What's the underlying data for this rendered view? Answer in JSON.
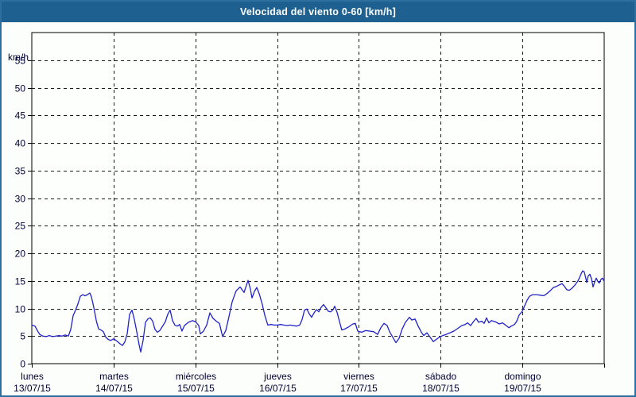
{
  "window": {
    "title": "Velocidad del viento 0-60 [km/h]"
  },
  "colors": {
    "title_bg": "#1e6090",
    "frame": "#2d6f9f",
    "page_bg": "#fbfefb",
    "plot_bg": "#fdfffd",
    "grid": "#1a1a1a",
    "axis": "#000000",
    "text": "#000033",
    "line": "#2121c8"
  },
  "chart_data": {
    "type": "line",
    "title": "Velocidad del viento 0-60 [km/h]",
    "y_unit_label": "km/h",
    "ylim": [
      0,
      60
    ],
    "ytick_step": 5,
    "ytick_label_max": 55,
    "grid": "dashed",
    "legend": "none",
    "x_days": [
      {
        "name": "lunes",
        "date": "13/07/15"
      },
      {
        "name": "martes",
        "date": "14/07/15"
      },
      {
        "name": "miércoles",
        "date": "15/07/15"
      },
      {
        "name": "jueves",
        "date": "16/07/15"
      },
      {
        "name": "viernes",
        "date": "17/07/15"
      },
      {
        "name": "sábado",
        "date": "18/07/15"
      },
      {
        "name": "domingo",
        "date": "19/07/15"
      }
    ],
    "series": [
      {
        "name": "velocidad del viento",
        "unit": "km/h",
        "points": [
          [
            0.0,
            7.0
          ],
          [
            0.039,
            6.8
          ],
          [
            0.068,
            6.0
          ],
          [
            0.097,
            5.3
          ],
          [
            0.136,
            5.0
          ],
          [
            0.175,
            4.9
          ],
          [
            0.214,
            5.1
          ],
          [
            0.253,
            4.9
          ],
          [
            0.292,
            5.0
          ],
          [
            0.331,
            5.1
          ],
          [
            0.369,
            5.0
          ],
          [
            0.408,
            5.2
          ],
          [
            0.447,
            5.0
          ],
          [
            0.476,
            6.2
          ],
          [
            0.506,
            8.7
          ],
          [
            0.535,
            9.7
          ],
          [
            0.564,
            10.8
          ],
          [
            0.593,
            12.2
          ],
          [
            0.622,
            12.5
          ],
          [
            0.651,
            12.3
          ],
          [
            0.681,
            12.5
          ],
          [
            0.71,
            12.8
          ],
          [
            0.729,
            12.1
          ],
          [
            0.758,
            10.2
          ],
          [
            0.788,
            7.8
          ],
          [
            0.817,
            6.3
          ],
          [
            0.846,
            6.1
          ],
          [
            0.875,
            5.8
          ],
          [
            0.904,
            4.8
          ],
          [
            0.933,
            4.4
          ],
          [
            0.963,
            4.2
          ],
          [
            1.002,
            4.5
          ],
          [
            1.04,
            4.1
          ],
          [
            1.079,
            3.6
          ],
          [
            1.108,
            3.3
          ],
          [
            1.137,
            3.9
          ],
          [
            1.167,
            5.4
          ],
          [
            1.196,
            8.9
          ],
          [
            1.225,
            9.7
          ],
          [
            1.254,
            8.0
          ],
          [
            1.283,
            5.8
          ],
          [
            1.312,
            3.5
          ],
          [
            1.332,
            2.1
          ],
          [
            1.361,
            4.2
          ],
          [
            1.39,
            7.5
          ],
          [
            1.419,
            8.1
          ],
          [
            1.449,
            8.3
          ],
          [
            1.478,
            7.7
          ],
          [
            1.507,
            6.2
          ],
          [
            1.536,
            5.7
          ],
          [
            1.565,
            6.0
          ],
          [
            1.604,
            6.9
          ],
          [
            1.633,
            7.6
          ],
          [
            1.662,
            8.9
          ],
          [
            1.692,
            9.7
          ],
          [
            1.721,
            7.8
          ],
          [
            1.75,
            7.0
          ],
          [
            1.779,
            6.8
          ],
          [
            1.808,
            7.1
          ],
          [
            1.837,
            5.9
          ],
          [
            1.867,
            6.9
          ],
          [
            1.915,
            7.5
          ],
          [
            1.964,
            7.8
          ],
          [
            2.003,
            7.6
          ],
          [
            2.042,
            6.9
          ],
          [
            2.061,
            5.4
          ],
          [
            2.1,
            5.9
          ],
          [
            2.139,
            7.0
          ],
          [
            2.178,
            9.2
          ],
          [
            2.217,
            8.2
          ],
          [
            2.256,
            7.7
          ],
          [
            2.294,
            7.3
          ],
          [
            2.333,
            4.9
          ],
          [
            2.372,
            6.0
          ],
          [
            2.411,
            8.5
          ],
          [
            2.45,
            11.2
          ],
          [
            2.499,
            13.2
          ],
          [
            2.547,
            13.9
          ],
          [
            2.596,
            12.9
          ],
          [
            2.644,
            15.1
          ],
          [
            2.674,
            13.5
          ],
          [
            2.693,
            11.9
          ],
          [
            2.722,
            13.1
          ],
          [
            2.751,
            13.8
          ],
          [
            2.781,
            12.7
          ],
          [
            2.819,
            10.7
          ],
          [
            2.849,
            8.8
          ],
          [
            2.887,
            7.0
          ],
          [
            2.926,
            7.1
          ],
          [
            2.965,
            7.0
          ],
          [
            3.004,
            7.0
          ],
          [
            3.043,
            7.1
          ],
          [
            3.082,
            7.0
          ],
          [
            3.121,
            6.9
          ],
          [
            3.16,
            7.0
          ],
          [
            3.198,
            6.9
          ],
          [
            3.237,
            6.8
          ],
          [
            3.276,
            7.0
          ],
          [
            3.306,
            8.0
          ],
          [
            3.335,
            9.7
          ],
          [
            3.364,
            9.9
          ],
          [
            3.393,
            9.0
          ],
          [
            3.422,
            8.4
          ],
          [
            3.451,
            9.2
          ],
          [
            3.481,
            9.8
          ],
          [
            3.51,
            9.4
          ],
          [
            3.539,
            10.2
          ],
          [
            3.568,
            10.7
          ],
          [
            3.597,
            10.1
          ],
          [
            3.626,
            9.5
          ],
          [
            3.656,
            9.4
          ],
          [
            3.685,
            9.8
          ],
          [
            3.704,
            10.4
          ],
          [
            3.733,
            9.3
          ],
          [
            3.762,
            7.7
          ],
          [
            3.791,
            6.1
          ],
          [
            3.83,
            6.3
          ],
          [
            3.869,
            6.6
          ],
          [
            3.898,
            6.9
          ],
          [
            3.928,
            7.2
          ],
          [
            3.957,
            7.3
          ],
          [
            3.986,
            5.9
          ],
          [
            4.034,
            5.7
          ],
          [
            4.083,
            6.0
          ],
          [
            4.132,
            5.9
          ],
          [
            4.18,
            5.8
          ],
          [
            4.229,
            5.3
          ],
          [
            4.268,
            6.5
          ],
          [
            4.307,
            7.3
          ],
          [
            4.346,
            6.9
          ],
          [
            4.375,
            5.8
          ],
          [
            4.414,
            4.8
          ],
          [
            4.453,
            3.8
          ],
          [
            4.492,
            4.6
          ],
          [
            4.531,
            6.3
          ],
          [
            4.569,
            7.5
          ],
          [
            4.618,
            8.4
          ],
          [
            4.647,
            7.9
          ],
          [
            4.686,
            8.1
          ],
          [
            4.725,
            6.8
          ],
          [
            4.764,
            5.7
          ],
          [
            4.793,
            5.1
          ],
          [
            4.832,
            5.6
          ],
          [
            4.871,
            4.8
          ],
          [
            4.91,
            4.0
          ],
          [
            4.948,
            4.4
          ],
          [
            4.987,
            4.8
          ],
          [
            5.026,
            5.1
          ],
          [
            5.065,
            5.3
          ],
          [
            5.114,
            5.6
          ],
          [
            5.162,
            5.9
          ],
          [
            5.211,
            6.4
          ],
          [
            5.26,
            6.9
          ],
          [
            5.299,
            7.1
          ],
          [
            5.328,
            7.4
          ],
          [
            5.367,
            6.9
          ],
          [
            5.406,
            7.7
          ],
          [
            5.435,
            8.2
          ],
          [
            5.464,
            7.5
          ],
          [
            5.503,
            7.7
          ],
          [
            5.532,
            7.3
          ],
          [
            5.561,
            8.3
          ],
          [
            5.59,
            7.4
          ],
          [
            5.619,
            7.8
          ],
          [
            5.668,
            7.6
          ],
          [
            5.717,
            7.2
          ],
          [
            5.756,
            7.4
          ],
          [
            5.785,
            7.1
          ],
          [
            5.834,
            6.5
          ],
          [
            5.863,
            6.8
          ],
          [
            5.902,
            7.1
          ],
          [
            5.931,
            7.7
          ],
          [
            5.96,
            8.8
          ],
          [
            5.999,
            9.5
          ],
          [
            6.028,
            10.5
          ],
          [
            6.057,
            11.5
          ],
          [
            6.086,
            12.2
          ],
          [
            6.125,
            12.5
          ],
          [
            6.174,
            12.5
          ],
          [
            6.222,
            12.4
          ],
          [
            6.261,
            12.3
          ],
          [
            6.3,
            12.7
          ],
          [
            6.339,
            13.2
          ],
          [
            6.378,
            13.8
          ],
          [
            6.417,
            14.0
          ],
          [
            6.456,
            14.3
          ],
          [
            6.485,
            14.5
          ],
          [
            6.514,
            14.0
          ],
          [
            6.543,
            13.4
          ],
          [
            6.572,
            13.3
          ],
          [
            6.601,
            13.6
          ],
          [
            6.64,
            14.2
          ],
          [
            6.679,
            15.0
          ],
          [
            6.699,
            15.6
          ],
          [
            6.718,
            16.3
          ],
          [
            6.737,
            16.8
          ],
          [
            6.757,
            16.6
          ],
          [
            6.776,
            15.4
          ],
          [
            6.786,
            14.7
          ],
          [
            6.805,
            15.9
          ],
          [
            6.825,
            16.2
          ],
          [
            6.844,
            15.4
          ],
          [
            6.864,
            13.9
          ],
          [
            6.883,
            14.8
          ],
          [
            6.903,
            15.5
          ],
          [
            6.922,
            14.9
          ],
          [
            6.941,
            14.6
          ],
          [
            6.961,
            15.3
          ],
          [
            6.98,
            15.5
          ],
          [
            7.0,
            14.9
          ]
        ]
      }
    ]
  }
}
